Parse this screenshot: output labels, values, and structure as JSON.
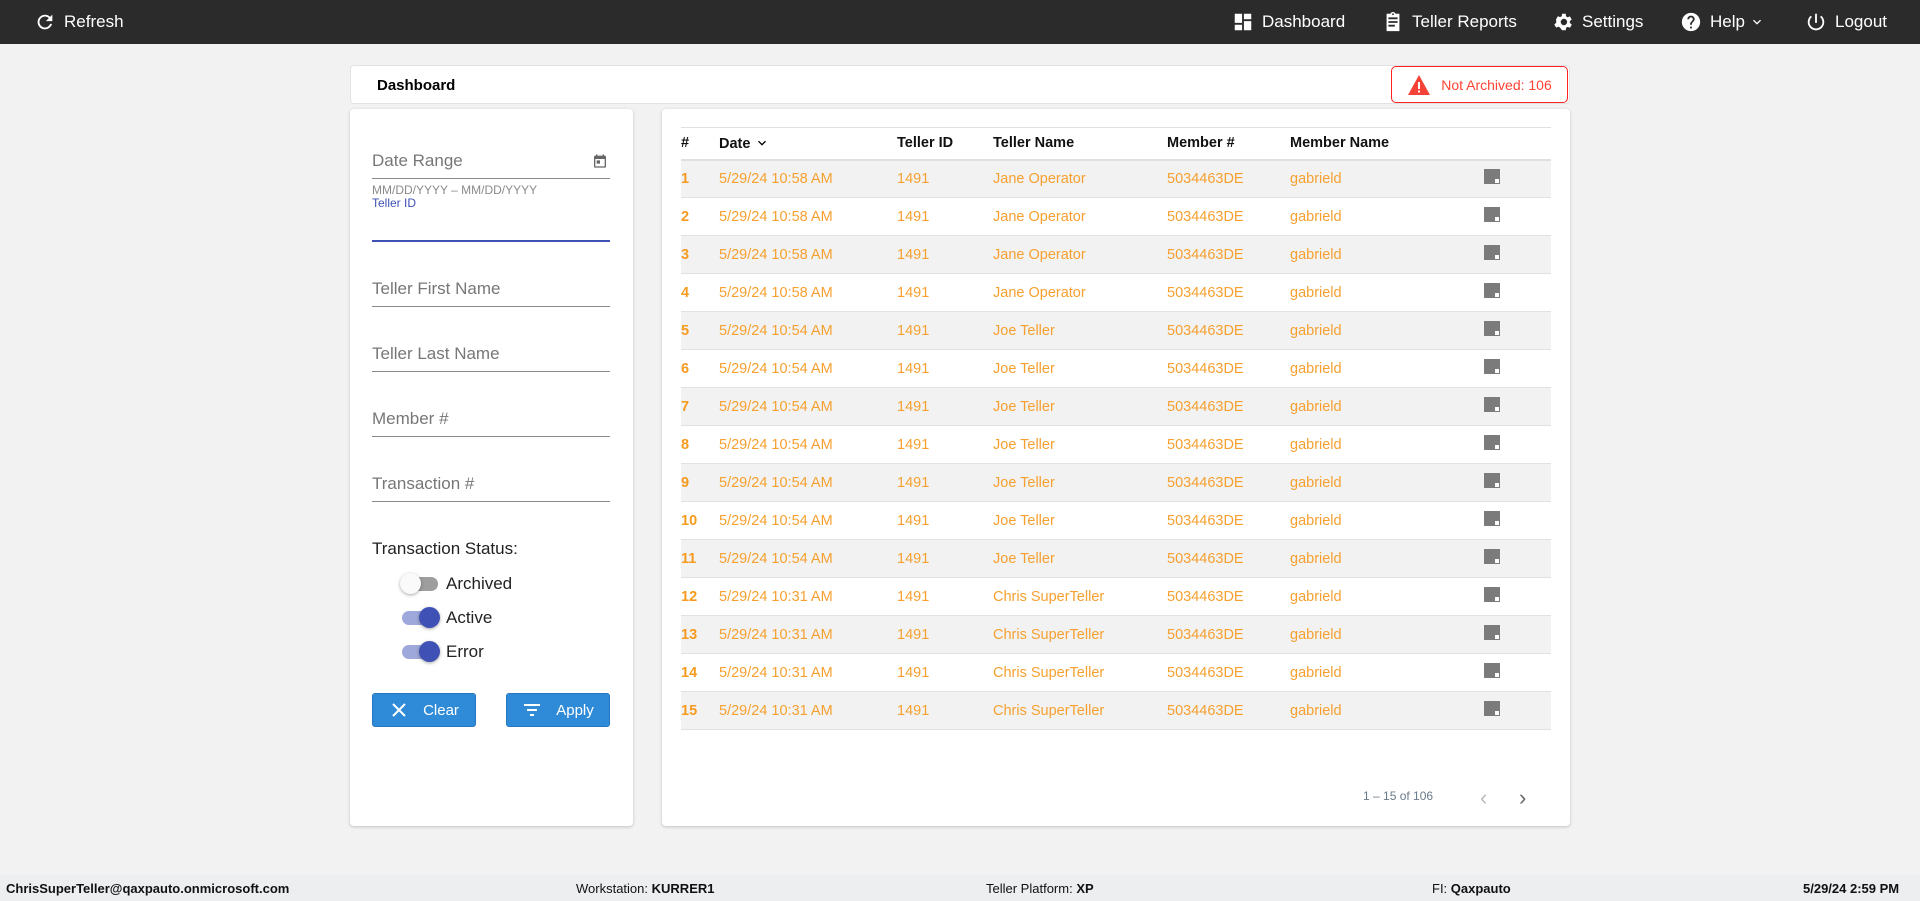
{
  "topbar": {
    "refresh": "Refresh",
    "nav": [
      {
        "label": "Dashboard",
        "icon": "dashboard-icon"
      },
      {
        "label": "Teller Reports",
        "icon": "clipboard-icon"
      },
      {
        "label": "Settings",
        "icon": "gear-icon"
      },
      {
        "label": "Help",
        "icon": "help-icon"
      },
      {
        "label": "Logout",
        "icon": "power-icon"
      }
    ]
  },
  "header": {
    "title": "Dashboard",
    "badge": "Not Archived: 106"
  },
  "filters": {
    "date_range": "Date Range",
    "date_hint": "MM/DD/YYYY – MM/DD/YYYY",
    "teller_id": "Teller ID",
    "first_name": "Teller First Name",
    "last_name": "Teller Last Name",
    "member": "Member #",
    "transaction": "Transaction #",
    "status_label": "Transaction Status:",
    "toggles": [
      {
        "label": "Archived",
        "on": false
      },
      {
        "label": "Active",
        "on": true
      },
      {
        "label": "Error",
        "on": true
      }
    ],
    "clear": "Clear",
    "apply": "Apply"
  },
  "table": {
    "columns": [
      "#",
      "Date",
      "Teller ID",
      "Teller Name",
      "Member #",
      "Member Name"
    ],
    "rows": [
      [
        "1",
        "5/29/24 10:58 AM",
        "1491",
        "Jane Operator",
        "5034463DE",
        "gabrield"
      ],
      [
        "2",
        "5/29/24 10:58 AM",
        "1491",
        "Jane Operator",
        "5034463DE",
        "gabrield"
      ],
      [
        "3",
        "5/29/24 10:58 AM",
        "1491",
        "Jane Operator",
        "5034463DE",
        "gabrield"
      ],
      [
        "4",
        "5/29/24 10:58 AM",
        "1491",
        "Jane Operator",
        "5034463DE",
        "gabrield"
      ],
      [
        "5",
        "5/29/24 10:54 AM",
        "1491",
        "Joe Teller",
        "5034463DE",
        "gabrield"
      ],
      [
        "6",
        "5/29/24 10:54 AM",
        "1491",
        "Joe Teller",
        "5034463DE",
        "gabrield"
      ],
      [
        "7",
        "5/29/24 10:54 AM",
        "1491",
        "Joe Teller",
        "5034463DE",
        "gabrield"
      ],
      [
        "8",
        "5/29/24 10:54 AM",
        "1491",
        "Joe Teller",
        "5034463DE",
        "gabrield"
      ],
      [
        "9",
        "5/29/24 10:54 AM",
        "1491",
        "Joe Teller",
        "5034463DE",
        "gabrield"
      ],
      [
        "10",
        "5/29/24 10:54 AM",
        "1491",
        "Joe Teller",
        "5034463DE",
        "gabrield"
      ],
      [
        "11",
        "5/29/24 10:54 AM",
        "1491",
        "Joe Teller",
        "5034463DE",
        "gabrield"
      ],
      [
        "12",
        "5/29/24 10:31 AM",
        "1491",
        "Chris SuperTeller",
        "5034463DE",
        "gabrield"
      ],
      [
        "13",
        "5/29/24 10:31 AM",
        "1491",
        "Chris SuperTeller",
        "5034463DE",
        "gabrield"
      ],
      [
        "14",
        "5/29/24 10:31 AM",
        "1491",
        "Chris SuperTeller",
        "5034463DE",
        "gabrield"
      ],
      [
        "15",
        "5/29/24 10:31 AM",
        "1491",
        "Chris SuperTeller",
        "5034463DE",
        "gabrield"
      ]
    ],
    "pagination": "1 – 15 of 106"
  },
  "footer": {
    "user": "ChrisSuperTeller@qaxpauto.onmicrosoft.com",
    "workstation_label": "Workstation:",
    "workstation": "KURRER1",
    "platform_label": "Teller Platform:",
    "platform": "XP",
    "fi_label": "FI:",
    "fi": "Qaxpauto",
    "datetime": "5/29/24 2:59 PM"
  },
  "colors": {
    "topbar": "#2b2b2b",
    "accent": "#3f51b5",
    "button": "#2f8bd8",
    "row_text": "#f7a030",
    "alert": "#ff3333"
  }
}
